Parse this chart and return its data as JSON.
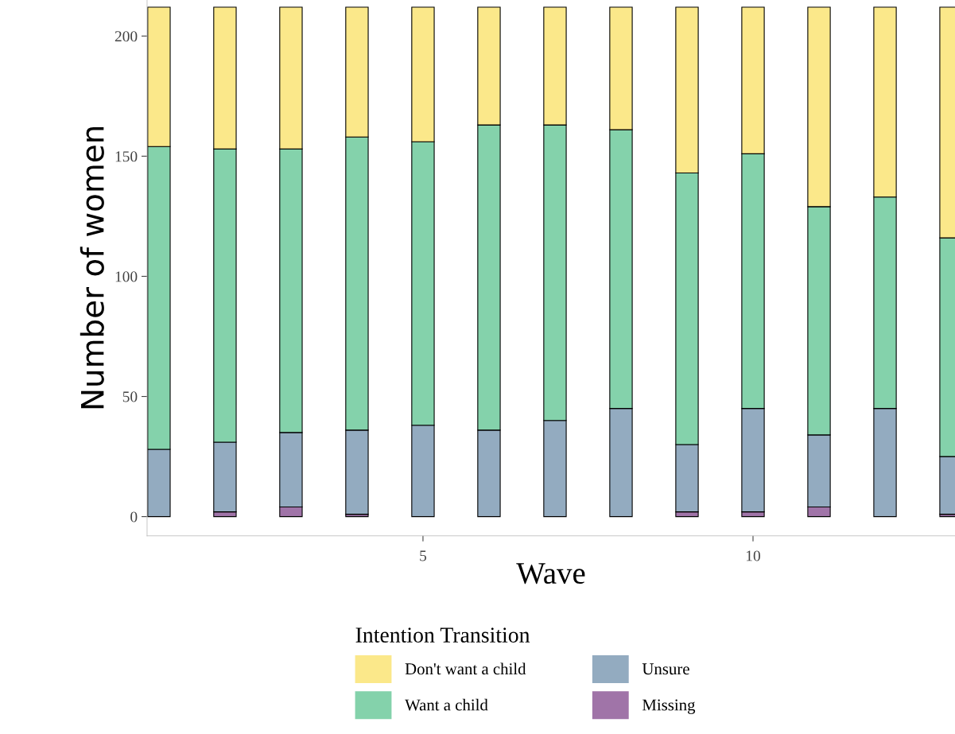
{
  "chart_data": {
    "type": "bar",
    "stacked": true,
    "xlabel": "Wave",
    "ylabel": "Number of women",
    "legend_title": "Intention Transition",
    "legend": "bottom",
    "grid": false,
    "x": [
      1,
      2,
      3,
      4,
      5,
      6,
      7,
      8,
      9,
      10,
      11,
      12,
      13
    ],
    "xlim": [
      0.82,
      13.06
    ],
    "xticks": [
      5,
      10
    ],
    "ylim": [
      -8,
      215
    ],
    "yticks": [
      0,
      50,
      100,
      150,
      200
    ],
    "series": [
      {
        "name": "Missing",
        "color": "#a074a8",
        "values": [
          null,
          2,
          4,
          1,
          null,
          null,
          null,
          null,
          2,
          2,
          4,
          null,
          1
        ]
      },
      {
        "name": "Unsure",
        "color": "#93abc0",
        "values": [
          28,
          29,
          31,
          35,
          38,
          36,
          40,
          45,
          28,
          43,
          30,
          45,
          24
        ]
      },
      {
        "name": "Want a child",
        "color": "#84d2ab",
        "values": [
          126,
          122,
          118,
          122,
          118,
          127,
          123,
          116,
          113,
          106,
          95,
          88,
          91
        ]
      },
      {
        "name": "Don't want a child",
        "color": "#fbe88a",
        "values": [
          58,
          59,
          59,
          54,
          56,
          49,
          49,
          51,
          69,
          61,
          83,
          79,
          96
        ]
      }
    ]
  }
}
